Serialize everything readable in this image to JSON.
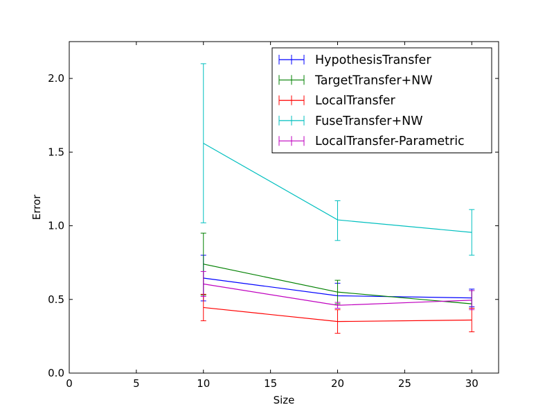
{
  "chart_data": {
    "type": "line",
    "title": "",
    "xlabel": "Size",
    "ylabel": "Error",
    "xlim": [
      0,
      32
    ],
    "ylim": [
      0,
      2.25
    ],
    "xticks": [
      0,
      5,
      10,
      15,
      20,
      25,
      30
    ],
    "yticks": [
      0.0,
      0.5,
      1.0,
      1.5,
      2.0
    ],
    "xtick_labels": [
      "0",
      "5",
      "10",
      "15",
      "20",
      "25",
      "30"
    ],
    "ytick_labels": [
      "0.0",
      "0.5",
      "1.0",
      "1.5",
      "2.0"
    ],
    "grid": false,
    "legend_position": "top-right",
    "x": [
      10,
      20,
      30
    ],
    "series": [
      {
        "name": "HypothesisTransfer",
        "color": "#0000ff",
        "values": [
          0.645,
          0.525,
          0.51
        ],
        "err_low": [
          0.49,
          0.44,
          0.45
        ],
        "err_high": [
          0.8,
          0.61,
          0.57
        ]
      },
      {
        "name": "TargetTransfer+NW",
        "color": "#008000",
        "values": [
          0.74,
          0.55,
          0.47
        ],
        "err_low": [
          0.53,
          0.47,
          0.44
        ],
        "err_high": [
          0.95,
          0.63,
          0.56
        ]
      },
      {
        "name": "LocalTransfer",
        "color": "#ff0000",
        "values": [
          0.445,
          0.35,
          0.36
        ],
        "err_low": [
          0.355,
          0.27,
          0.28
        ],
        "err_high": [
          0.535,
          0.43,
          0.44
        ]
      },
      {
        "name": "FuseTransfer+NW",
        "color": "#00bfbf",
        "values": [
          1.56,
          1.04,
          0.955
        ],
        "err_low": [
          1.02,
          0.9,
          0.8
        ],
        "err_high": [
          2.1,
          1.17,
          1.11
        ]
      },
      {
        "name": "LocalTransfer-Parametric",
        "color": "#bf00bf",
        "values": [
          0.605,
          0.46,
          0.495
        ],
        "err_low": [
          0.52,
          0.44,
          0.43
        ],
        "err_high": [
          0.69,
          0.48,
          0.56
        ]
      }
    ]
  }
}
